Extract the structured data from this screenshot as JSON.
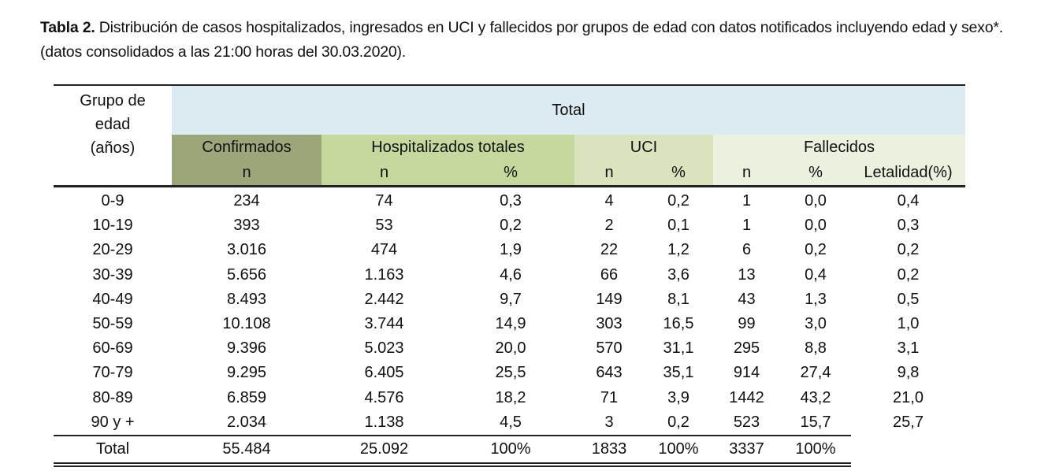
{
  "caption": {
    "label": "Tabla 2.",
    "text": " Distribución de casos hospitalizados, ingresados en UCI y fallecidos por grupos de edad con datos notificados incluyendo edad y sexo*. (datos consolidados a las 21:00 horas del 30.03.2020)."
  },
  "colors": {
    "total_band": "#DCEBF2",
    "confirmados": "#9BA77B",
    "hospitalizados": "#C7D89F",
    "uci": "#D9E3BD",
    "fallecidos": "#EBF1DE"
  },
  "header": {
    "grupo_line1": "Grupo de",
    "grupo_line2": "edad",
    "grupo_line3": "(años)",
    "total": "Total",
    "groups": [
      "Confirmados",
      "Hospitalizados totales",
      "UCI",
      "Fallecidos"
    ],
    "subheaders": [
      "n",
      "n",
      "%",
      "n",
      "%",
      "n",
      "%",
      "Letalidad(%)"
    ]
  },
  "rows": [
    [
      "0-9",
      "234",
      "74",
      "0,3",
      "4",
      "0,2",
      "1",
      "0,0",
      "0,4"
    ],
    [
      "10-19",
      "393",
      "53",
      "0,2",
      "2",
      "0,1",
      "1",
      "0,0",
      "0,3"
    ],
    [
      "20-29",
      "3.016",
      "474",
      "1,9",
      "22",
      "1,2",
      "6",
      "0,2",
      "0,2"
    ],
    [
      "30-39",
      "5.656",
      "1.163",
      "4,6",
      "66",
      "3,6",
      "13",
      "0,4",
      "0,2"
    ],
    [
      "40-49",
      "8.493",
      "2.442",
      "9,7",
      "149",
      "8,1",
      "43",
      "1,3",
      "0,5"
    ],
    [
      "50-59",
      "10.108",
      "3.744",
      "14,9",
      "303",
      "16,5",
      "99",
      "3,0",
      "1,0"
    ],
    [
      "60-69",
      "9.396",
      "5.023",
      "20,0",
      "570",
      "31,1",
      "295",
      "8,8",
      "3,1"
    ],
    [
      "70-79",
      "9.295",
      "6.405",
      "25,5",
      "643",
      "35,1",
      "914",
      "27,4",
      "9,8"
    ],
    [
      "80-89",
      "6.859",
      "4.576",
      "18,2",
      "71",
      "3,9",
      "1442",
      "43,2",
      "21,0"
    ],
    [
      "90 y +",
      "2.034",
      "1.138",
      "4,5",
      "3",
      "0,2",
      "523",
      "15,7",
      "25,7"
    ]
  ],
  "total_row": [
    "Total",
    "55.484",
    "25.092",
    "100%",
    "1833",
    "100%",
    "3337",
    "100%"
  ]
}
